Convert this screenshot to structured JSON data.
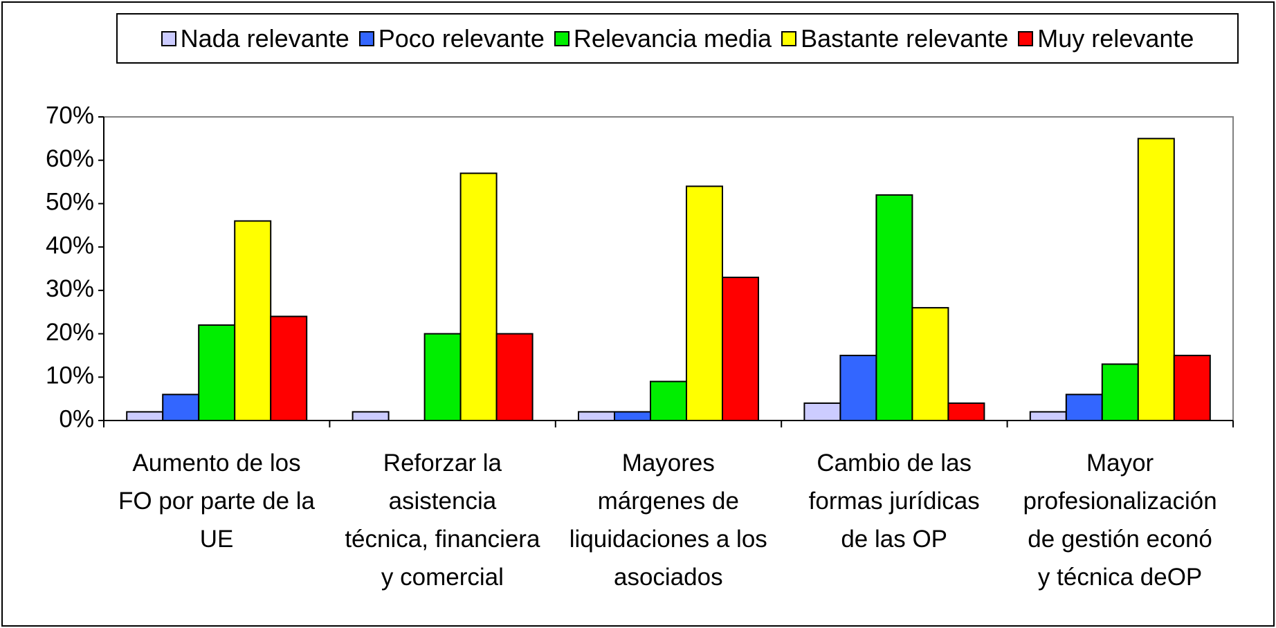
{
  "chart_data": {
    "type": "bar",
    "categories": [
      "Aumento de los\nFO por parte de la\nUE",
      "Reforzar la\nasistencia\ntécnica, financiera\ny comercial",
      "Mayores\nmárgenes de\nliquidaciones a los\nasociados",
      "Cambio de las\nformas jurídicas\nde las OP",
      "Mayor\nprofesionalización\nde  gestión econó\ny técnica deOP"
    ],
    "series": [
      {
        "name": "Nada relevante",
        "color": "#ccccff",
        "values": [
          2,
          2,
          2,
          4,
          2
        ]
      },
      {
        "name": "Poco relevante",
        "color": "#3366ff",
        "values": [
          6,
          0,
          2,
          15,
          6
        ]
      },
      {
        "name": "Relevancia media",
        "color": "#00ee00",
        "values": [
          22,
          20,
          9,
          52,
          13
        ]
      },
      {
        "name": "Bastante relevante",
        "color": "#ffff00",
        "values": [
          46,
          57,
          54,
          26,
          65
        ]
      },
      {
        "name": "Muy relevante",
        "color": "#ff0000",
        "values": [
          24,
          20,
          33,
          4,
          15
        ]
      }
    ],
    "ylim": [
      0,
      70
    ],
    "yticks": [
      {
        "value": 0,
        "label": "0%"
      },
      {
        "value": 10,
        "label": "10%"
      },
      {
        "value": 20,
        "label": "20%"
      },
      {
        "value": 30,
        "label": "30%"
      },
      {
        "value": 40,
        "label": "40%"
      },
      {
        "value": 50,
        "label": "50%"
      },
      {
        "value": 60,
        "label": "60%"
      },
      {
        "value": 70,
        "label": "70%"
      }
    ],
    "legend": "top"
  }
}
